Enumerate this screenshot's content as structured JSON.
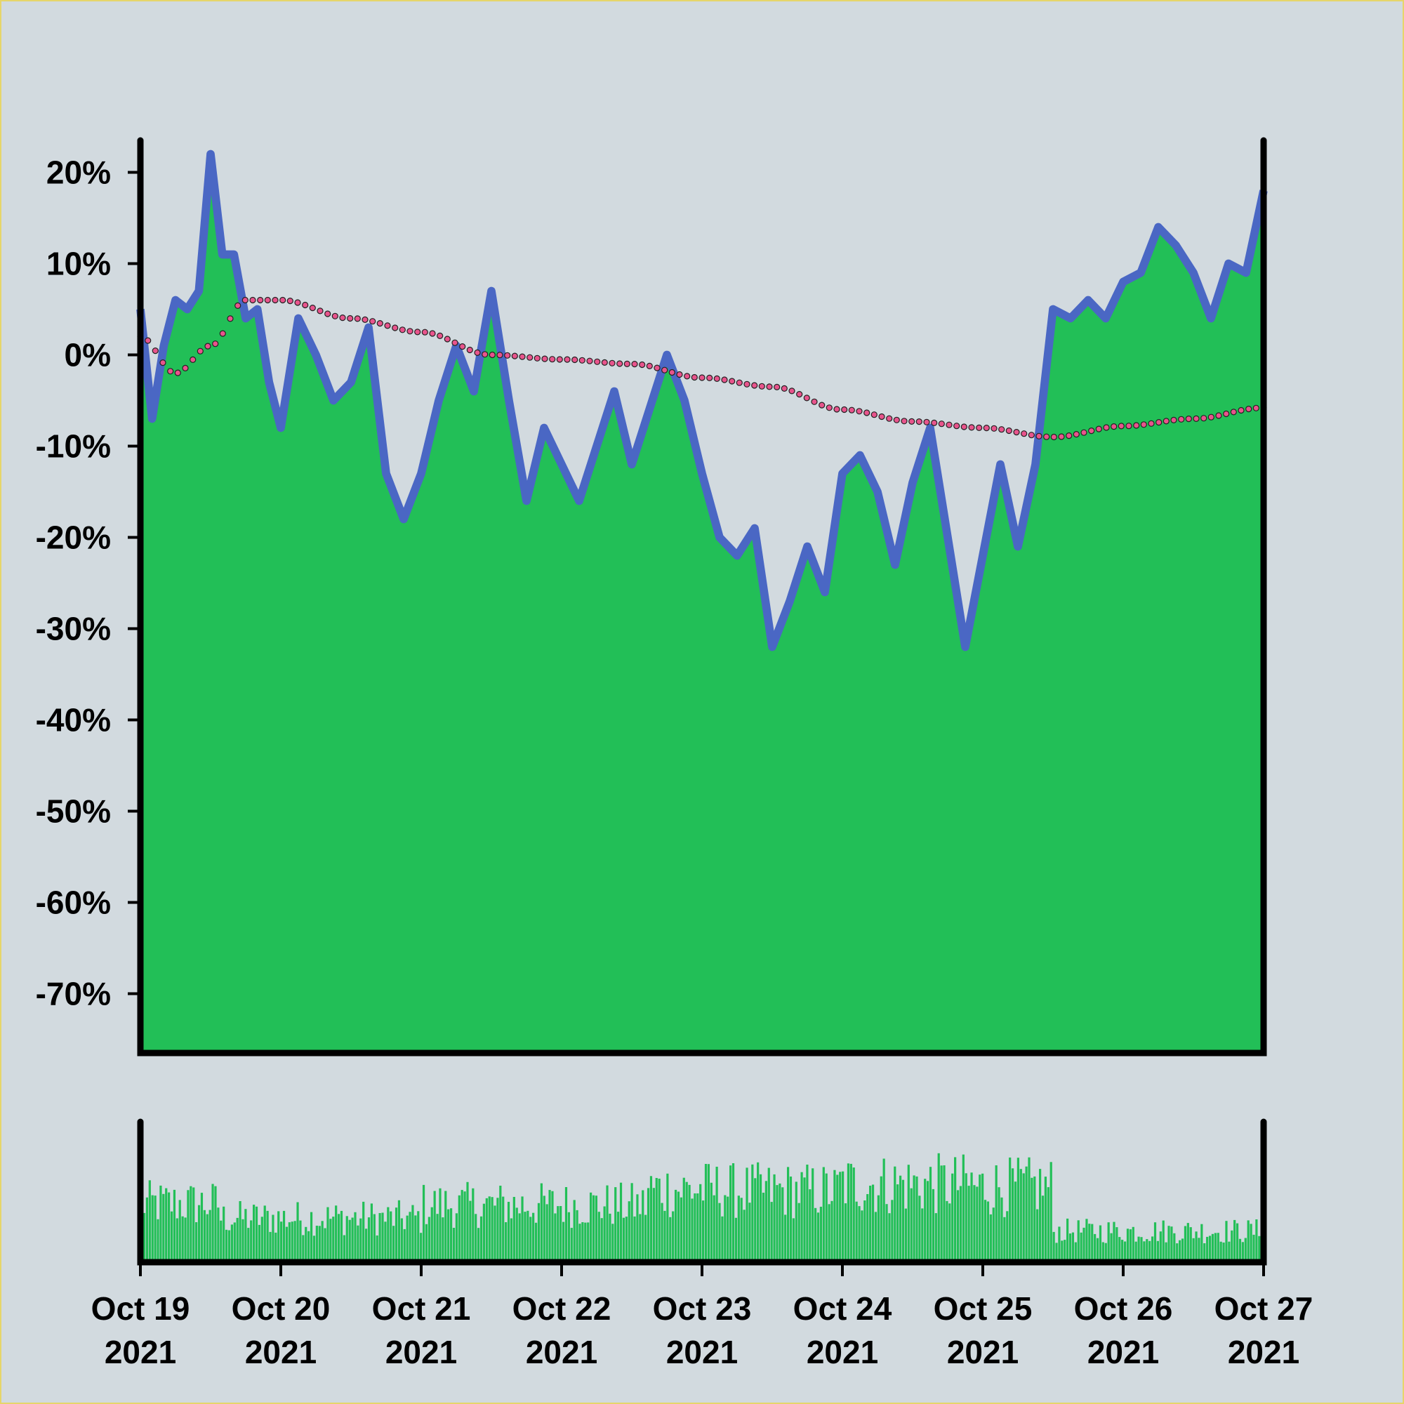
{
  "chart_data": {
    "type": "area",
    "title": "",
    "xlabel": "",
    "ylabel": "",
    "x_ticks": [
      {
        "line1": "Oct 19",
        "line2": "2021"
      },
      {
        "line1": "Oct 20",
        "line2": "2021"
      },
      {
        "line1": "Oct 21",
        "line2": "2021"
      },
      {
        "line1": "Oct 22",
        "line2": "2021"
      },
      {
        "line1": "Oct 23",
        "line2": "2021"
      },
      {
        "line1": "Oct 24",
        "line2": "2021"
      },
      {
        "line1": "Oct 25",
        "line2": "2021"
      },
      {
        "line1": "Oct 26",
        "line2": "2021"
      },
      {
        "line1": "Oct 27",
        "line2": "2021"
      }
    ],
    "y_ticks": [
      "20%",
      "10%",
      "0%",
      "-10%",
      "-20%",
      "-30%",
      "-40%",
      "-50%",
      "-60%",
      "-70%"
    ],
    "y_tick_values": [
      20,
      10,
      0,
      -10,
      -20,
      -30,
      -40,
      -50,
      -60,
      -70
    ],
    "xlim": [
      "2021-10-19T00:00",
      "2021-10-27T00:00"
    ],
    "ylim": [
      -76.5,
      23.5
    ],
    "grid": false,
    "colors": {
      "fill": "#22bf57",
      "line": "#4a67c4",
      "trend_dot": "#e8548c",
      "volume": "#22bf57",
      "background": "#d2dadf",
      "border": "#e6d56a"
    },
    "series": [
      {
        "kind": "area-line",
        "x": [
          "2021-10-19T00:00",
          "2021-10-19T02:00",
          "2021-10-19T04:00",
          "2021-10-19T06:00",
          "2021-10-19T08:00",
          "2021-10-19T10:00",
          "2021-10-19T12:00",
          "2021-10-19T14:00",
          "2021-10-19T16:00",
          "2021-10-19T18:00",
          "2021-10-19T20:00",
          "2021-10-19T22:00",
          "2021-10-20T00:00",
          "2021-10-20T03:00",
          "2021-10-20T06:00",
          "2021-10-20T09:00",
          "2021-10-20T12:00",
          "2021-10-20T15:00",
          "2021-10-20T18:00",
          "2021-10-20T21:00",
          "2021-10-21T00:00",
          "2021-10-21T03:00",
          "2021-10-21T06:00",
          "2021-10-21T09:00",
          "2021-10-21T12:00",
          "2021-10-21T15:00",
          "2021-10-21T18:00",
          "2021-10-21T21:00",
          "2021-10-22T00:00",
          "2021-10-22T03:00",
          "2021-10-22T06:00",
          "2021-10-22T09:00",
          "2021-10-22T12:00",
          "2021-10-22T15:00",
          "2021-10-22T18:00",
          "2021-10-22T21:00",
          "2021-10-23T00:00",
          "2021-10-23T03:00",
          "2021-10-23T06:00",
          "2021-10-23T09:00",
          "2021-10-23T12:00",
          "2021-10-23T15:00",
          "2021-10-23T18:00",
          "2021-10-23T21:00",
          "2021-10-24T00:00",
          "2021-10-24T03:00",
          "2021-10-24T06:00",
          "2021-10-24T09:00",
          "2021-10-24T12:00",
          "2021-10-24T15:00",
          "2021-10-24T18:00",
          "2021-10-24T21:00",
          "2021-10-25T00:00",
          "2021-10-25T03:00",
          "2021-10-25T06:00",
          "2021-10-25T09:00",
          "2021-10-25T12:00",
          "2021-10-25T15:00",
          "2021-10-25T18:00",
          "2021-10-25T21:00",
          "2021-10-26T00:00",
          "2021-10-26T03:00",
          "2021-10-26T06:00",
          "2021-10-26T09:00",
          "2021-10-26T12:00",
          "2021-10-26T15:00",
          "2021-10-26T18:00",
          "2021-10-26T21:00",
          "2021-10-27T00:00"
        ],
        "y": [
          5,
          -7,
          1,
          6,
          5,
          7,
          22,
          11,
          11,
          4,
          5,
          -3,
          -8,
          4,
          0,
          -5,
          -3,
          3,
          -13,
          -18,
          -13,
          -5,
          1,
          -4,
          7,
          -5,
          -16,
          -8,
          -12,
          -16,
          -10,
          -4,
          -12,
          -6,
          0,
          -5,
          -13,
          -20,
          -22,
          -19,
          -32,
          -27,
          -21,
          -26,
          -13,
          -11,
          -15,
          -23,
          -14,
          -8,
          -20,
          -32,
          -22,
          -12,
          -21,
          -12,
          5,
          4,
          6,
          4,
          8,
          9,
          14,
          12,
          9,
          4,
          10,
          9,
          18
        ],
        "band_width_pct": 1.8
      },
      {
        "kind": "dotted-trend",
        "x": [
          "2021-10-19T00:00",
          "2021-10-19T06:00",
          "2021-10-19T12:00",
          "2021-10-19T18:00",
          "2021-10-20T00:00",
          "2021-10-20T12:00",
          "2021-10-21T00:00",
          "2021-10-21T12:00",
          "2021-10-22T00:00",
          "2021-10-22T12:00",
          "2021-10-23T00:00",
          "2021-10-23T12:00",
          "2021-10-24T00:00",
          "2021-10-24T12:00",
          "2021-10-25T00:00",
          "2021-10-25T12:00",
          "2021-10-26T00:00",
          "2021-10-26T12:00",
          "2021-10-27T00:00"
        ],
        "y": [
          2,
          -2,
          1,
          6,
          6,
          4,
          2.5,
          0,
          -0.5,
          -1,
          -2.5,
          -3.5,
          -6,
          -7.3,
          -8,
          -9,
          -7.8,
          -7,
          -5.8
        ]
      }
    ],
    "volume": {
      "bar_count": 410,
      "min_level": 0.05,
      "segments": [
        {
          "from": 0.0,
          "to": 0.07,
          "level": 0.45
        },
        {
          "from": 0.07,
          "to": 0.25,
          "level": 0.34
        },
        {
          "from": 0.25,
          "to": 0.45,
          "level": 0.44
        },
        {
          "from": 0.45,
          "to": 0.52,
          "level": 0.56
        },
        {
          "from": 0.52,
          "to": 0.62,
          "level": 0.55
        },
        {
          "from": 0.62,
          "to": 0.74,
          "level": 0.6
        },
        {
          "from": 0.74,
          "to": 0.81,
          "level": 0.58
        },
        {
          "from": 0.81,
          "to": 1.0,
          "level": 0.24
        }
      ]
    }
  }
}
